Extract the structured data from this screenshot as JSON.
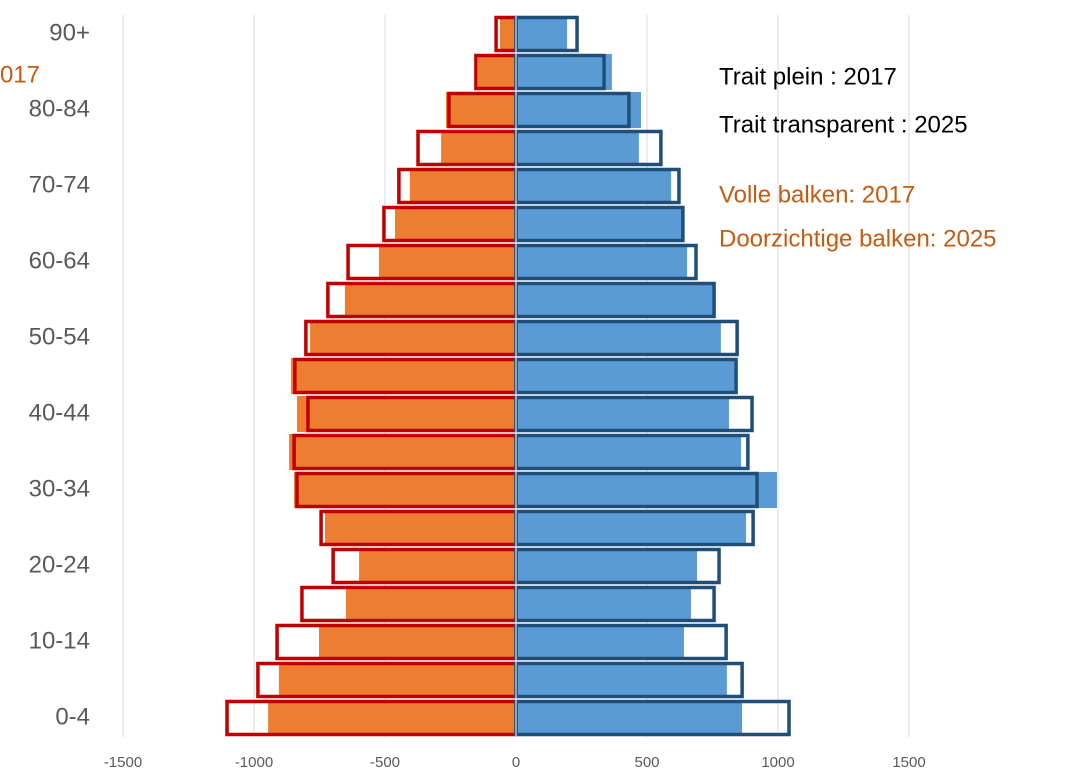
{
  "chart_data": {
    "type": "pyramid",
    "categories": [
      "0-4",
      null,
      "10-14",
      null,
      "20-24",
      null,
      "30-34",
      null,
      "40-44",
      null,
      "50-54",
      null,
      "60-64",
      null,
      "70-74",
      null,
      "80-84",
      null,
      "90+"
    ],
    "series": [
      {
        "color": "#ed7d31",
        "outline": false,
        "values": [
          -946,
          -905,
          -752,
          -649,
          -599,
          -729,
          -847,
          -866,
          -836,
          -859,
          -786,
          -653,
          -523,
          -462,
          -405,
          -286,
          -267,
          -145,
          -61
        ]
      },
      {
        "color": "#5b9bd5",
        "outline": false,
        "values": [
          863,
          805,
          641,
          668,
          691,
          878,
          996,
          859,
          813,
          836,
          782,
          752,
          653,
          637,
          592,
          469,
          477,
          366,
          195
        ]
      },
      {
        "color": "#c00000",
        "outline": true,
        "values": [
          -1103,
          -985,
          -912,
          -817,
          -698,
          -744,
          -836,
          -847,
          -794,
          -844,
          -802,
          -718,
          -641,
          -504,
          -447,
          -374,
          -256,
          -153,
          -76
        ]
      },
      {
        "color": "#1f4e79",
        "outline": true,
        "values": [
          1042,
          863,
          802,
          756,
          775,
          905,
          920,
          885,
          901,
          840,
          844,
          756,
          687,
          637,
          622,
          553,
          431,
          336,
          233
        ]
      }
    ],
    "xlim": [
      -1500,
      1500
    ],
    "xticks": [
      -1500,
      -1000,
      -500,
      0,
      500,
      1000,
      1500
    ],
    "grid": true,
    "annotations": [
      {
        "text": "017",
        "color": "#c55a11"
      },
      {
        "text": "Trait plein : 2017",
        "color": "#000000"
      },
      {
        "text": "Trait transparent : 2025",
        "color": "#000000"
      },
      {
        "text": "Volle balken: 2017",
        "color": "#c55a11"
      },
      {
        "text": "Doorzichtige balken: 2025",
        "color": "#c55a11"
      }
    ]
  }
}
